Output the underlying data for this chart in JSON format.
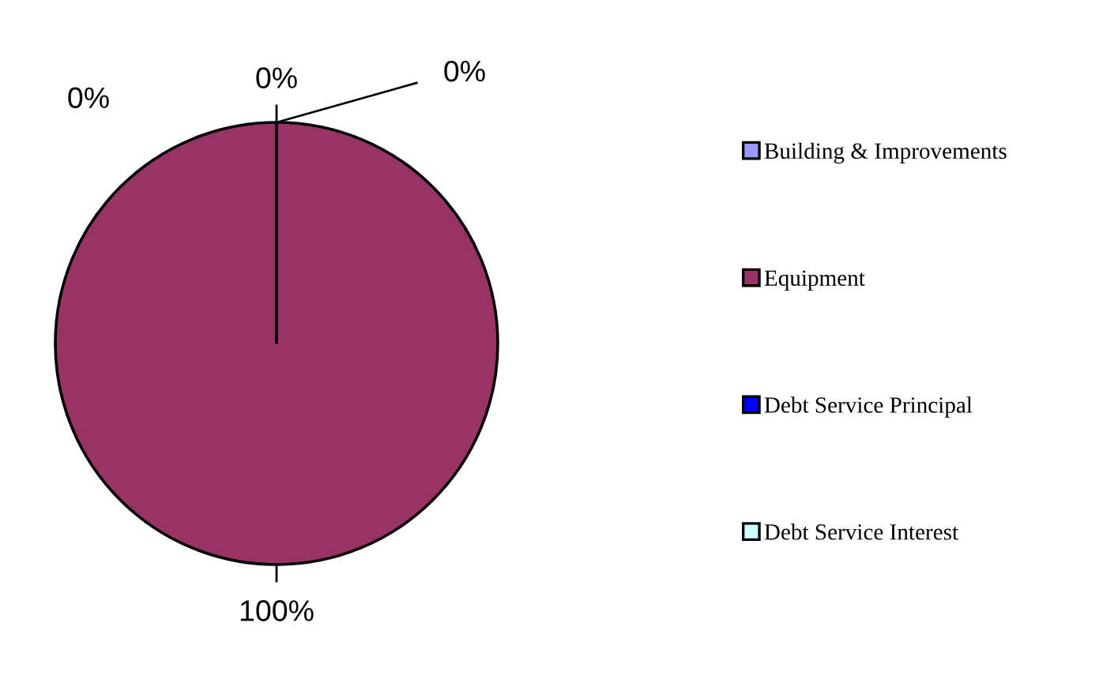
{
  "chart_data": {
    "type": "pie",
    "categories": [
      "Building & Improvements",
      "Equipment",
      "Debt Service Principal",
      "Debt Service Interest"
    ],
    "values": [
      0,
      100,
      0,
      0
    ],
    "colors": [
      "#9999ff",
      "#993366",
      "#0000ff",
      "#ccffff"
    ],
    "value_labels": [
      "0%",
      "100%",
      "0%",
      "0%"
    ],
    "legend": "right"
  }
}
